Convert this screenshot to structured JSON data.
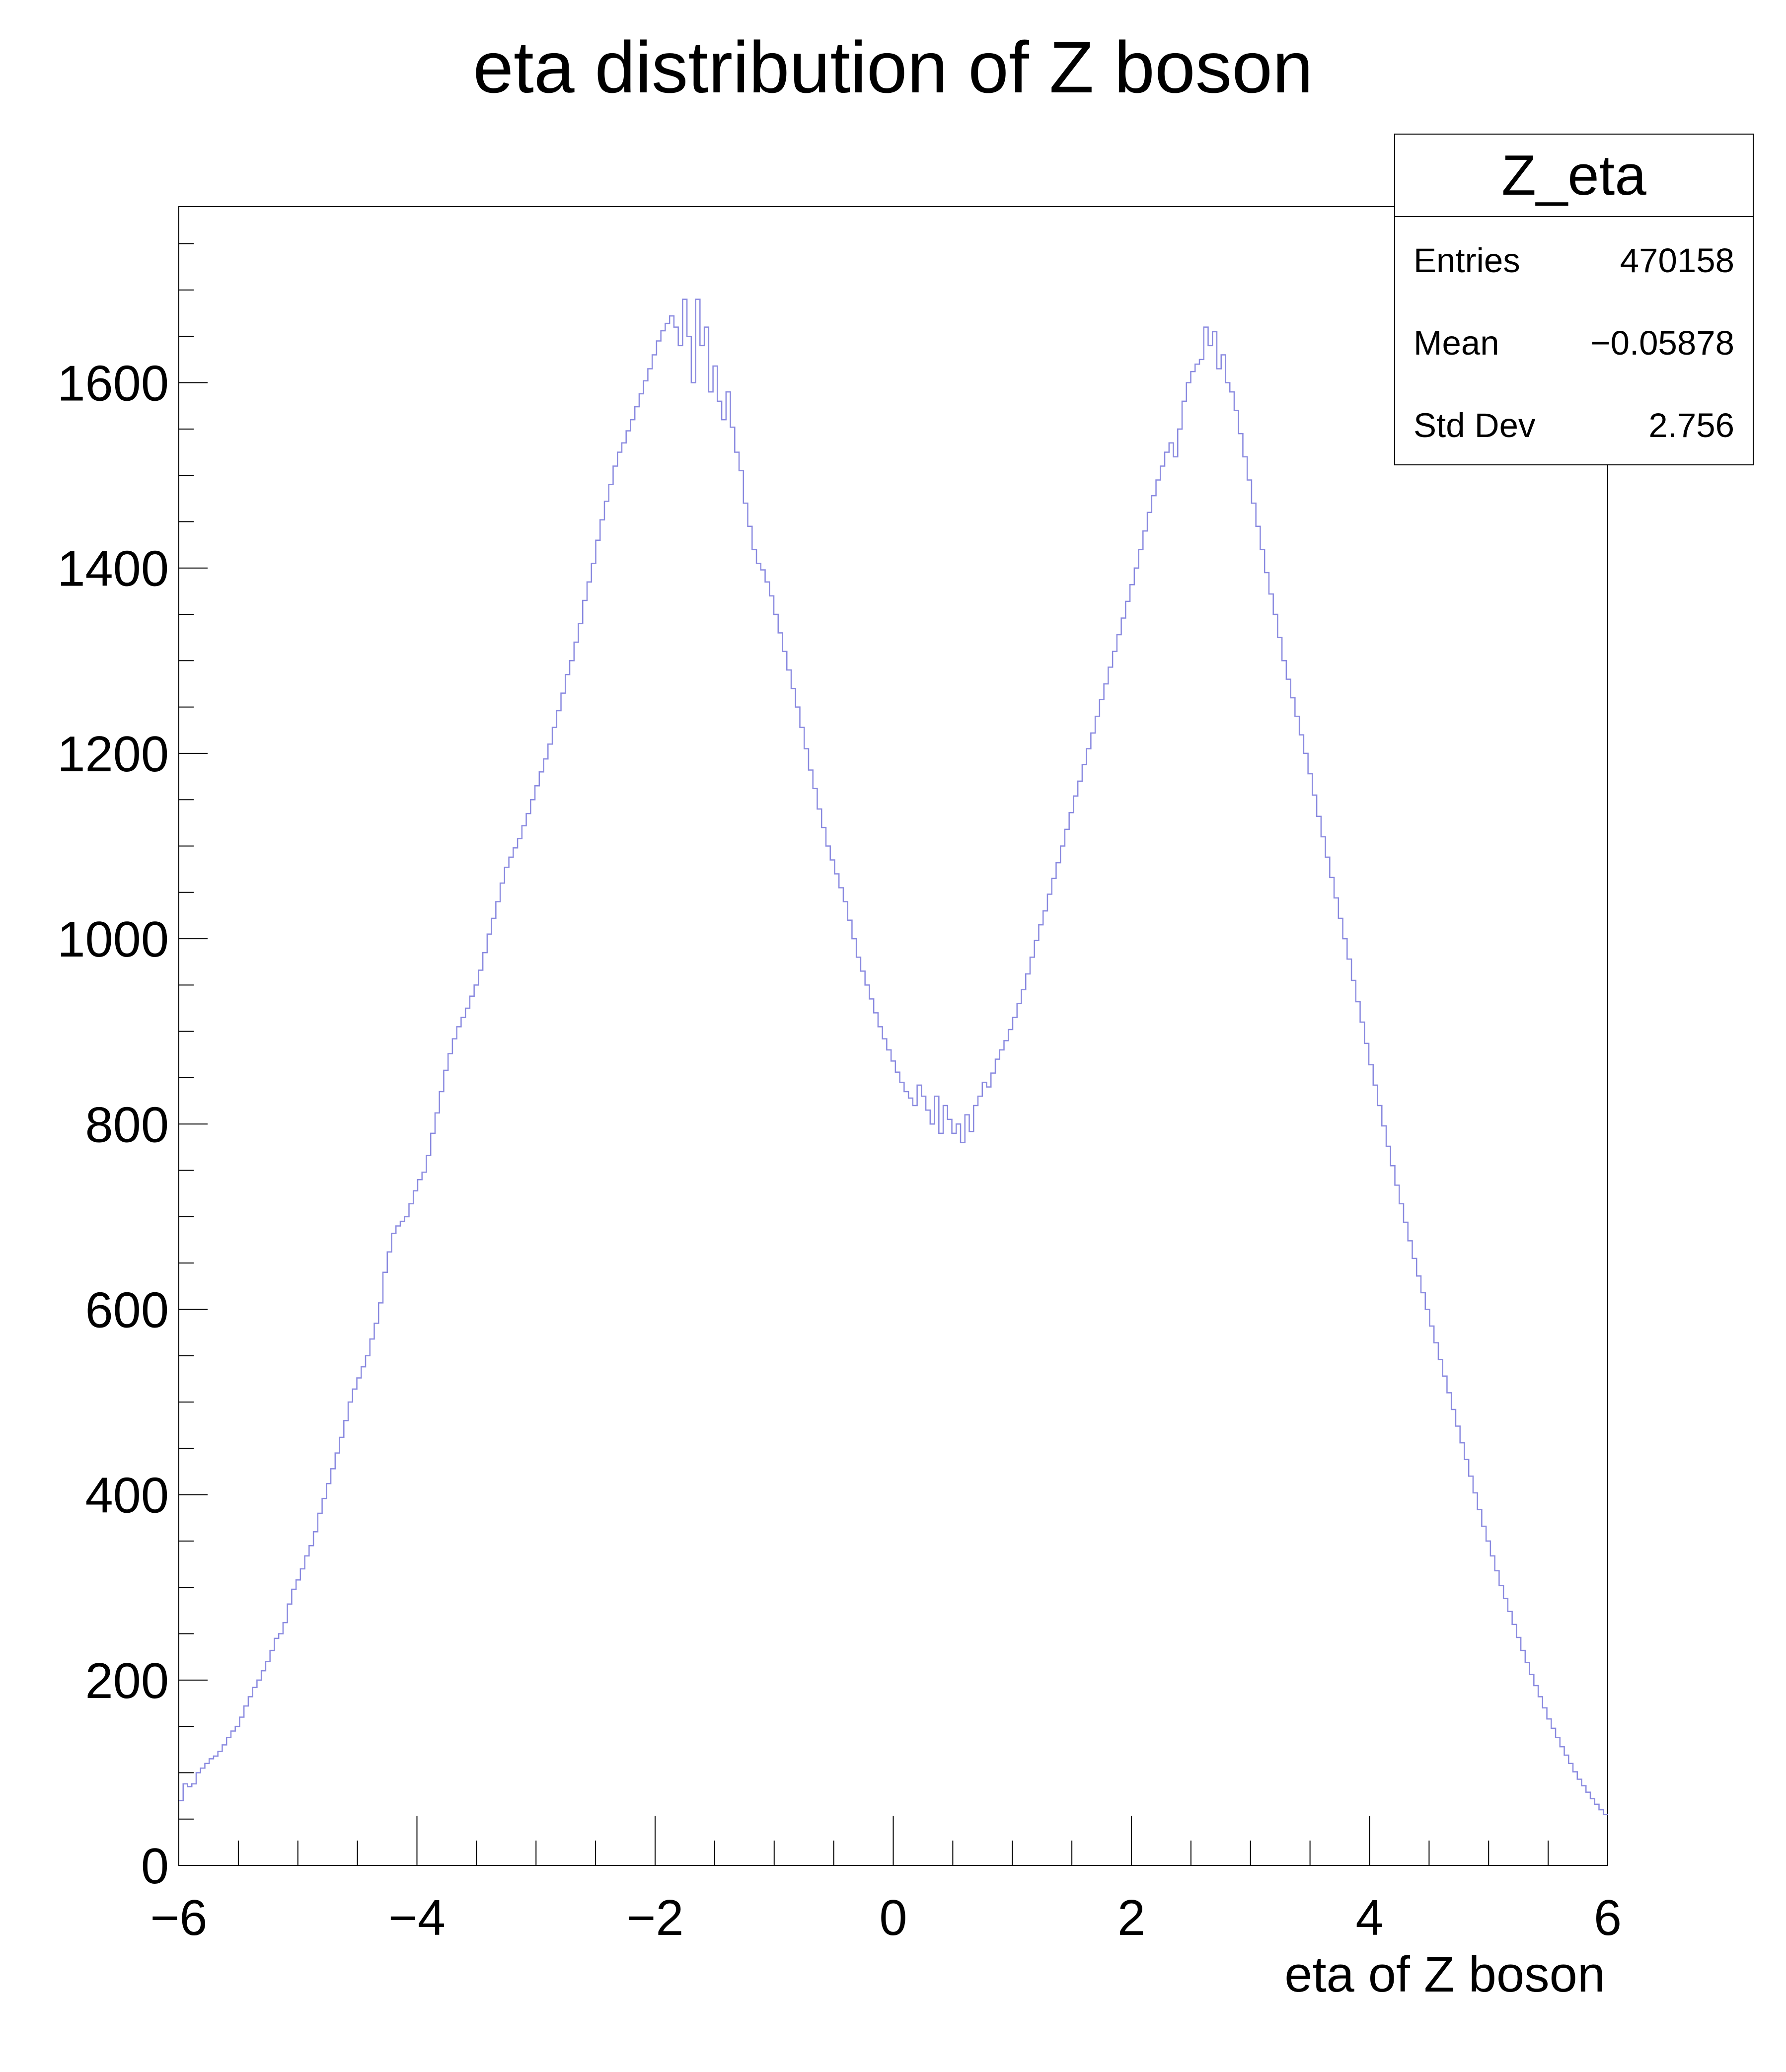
{
  "chart_data": {
    "type": "histogram",
    "title": "eta distribution of Z boson",
    "xlabel": "eta of Z boson",
    "ylabel": "",
    "xlim": [
      -6,
      6
    ],
    "ylim": [
      0,
      1790
    ],
    "x_ticks": [
      "−6",
      "−4",
      "−2",
      "0",
      "2",
      "4",
      "6"
    ],
    "y_ticks": [
      "0",
      "200",
      "400",
      "600",
      "800",
      "1000",
      "1200",
      "1400",
      "1600"
    ],
    "y_tick_values": [
      0,
      200,
      400,
      600,
      800,
      1000,
      1200,
      1400,
      1600
    ],
    "x_tick_values": [
      -6,
      -4,
      -2,
      0,
      2,
      4,
      6
    ],
    "line_color": "#8a8ae0",
    "bin_width": 0.05,
    "bin_edges_start": -6,
    "series": [
      {
        "name": "Z_eta",
        "values": [
          70,
          88,
          85,
          88,
          100,
          105,
          110,
          115,
          118,
          123,
          130,
          138,
          145,
          150,
          160,
          172,
          182,
          192,
          200,
          210,
          220,
          232,
          245,
          250,
          262,
          282,
          298,
          308,
          320,
          334,
          345,
          360,
          380,
          396,
          412,
          428,
          445,
          462,
          480,
          500,
          514,
          526,
          538,
          550,
          568,
          585,
          607,
          640,
          662,
          682,
          690,
          695,
          700,
          714,
          728,
          740,
          748,
          766,
          790,
          812,
          835,
          858,
          876,
          892,
          905,
          915,
          925,
          938,
          950,
          966,
          985,
          1005,
          1022,
          1040,
          1060,
          1077,
          1088,
          1098,
          1108,
          1122,
          1135,
          1150,
          1165,
          1180,
          1194,
          1210,
          1228,
          1246,
          1265,
          1285,
          1300,
          1320,
          1340,
          1365,
          1385,
          1405,
          1430,
          1452,
          1472,
          1490,
          1510,
          1525,
          1535,
          1548,
          1560,
          1574,
          1588,
          1602,
          1615,
          1630,
          1645,
          1656,
          1664,
          1672,
          1660,
          1640,
          1690,
          1650,
          1600,
          1690,
          1640,
          1660,
          1590,
          1618,
          1580,
          1560,
          1590,
          1552,
          1525,
          1505,
          1470,
          1445,
          1420,
          1405,
          1398,
          1385,
          1370,
          1350,
          1330,
          1310,
          1290,
          1270,
          1250,
          1228,
          1205,
          1182,
          1162,
          1140,
          1120,
          1100,
          1085,
          1070,
          1055,
          1040,
          1020,
          1000,
          980,
          965,
          950,
          935,
          920,
          905,
          892,
          880,
          868,
          856,
          845,
          835,
          828,
          820,
          842,
          830,
          815,
          800,
          830,
          790,
          820,
          805,
          790,
          800,
          780,
          810,
          792,
          820,
          830,
          845,
          840,
          855,
          870,
          880,
          890,
          902,
          915,
          930,
          945,
          962,
          980,
          998,
          1015,
          1030,
          1048,
          1065,
          1082,
          1100,
          1118,
          1136,
          1154,
          1170,
          1188,
          1205,
          1222,
          1240,
          1258,
          1275,
          1293,
          1310,
          1328,
          1346,
          1364,
          1382,
          1400,
          1420,
          1440,
          1460,
          1478,
          1495,
          1510,
          1525,
          1535,
          1520,
          1550,
          1580,
          1600,
          1612,
          1620,
          1625,
          1660,
          1640,
          1655,
          1615,
          1630,
          1600,
          1590,
          1570,
          1545,
          1520,
          1495,
          1470,
          1445,
          1420,
          1395,
          1372,
          1350,
          1325,
          1300,
          1280,
          1260,
          1240,
          1220,
          1200,
          1178,
          1155,
          1132,
          1110,
          1088,
          1066,
          1044,
          1022,
          1000,
          978,
          955,
          932,
          910,
          887,
          864,
          842,
          820,
          798,
          776,
          755,
          734,
          714,
          694,
          674,
          655,
          636,
          618,
          600,
          582,
          564,
          546,
          528,
          510,
          492,
          474,
          456,
          438,
          420,
          402,
          384,
          366,
          350,
          334,
          318,
          302,
          288,
          274,
          260,
          246,
          232,
          219,
          206,
          194,
          182,
          170,
          158,
          148,
          138,
          128,
          119,
          110,
          101,
          93,
          86,
          79,
          72,
          66,
          60,
          55
        ]
      }
    ],
    "stats_box": {
      "title": "Z_eta",
      "rows": [
        {
          "label": "Entries",
          "value": "470158"
        },
        {
          "label": "Mean",
          "value": "−0.05878"
        },
        {
          "label": "Std Dev",
          "value": "2.756"
        }
      ]
    }
  }
}
